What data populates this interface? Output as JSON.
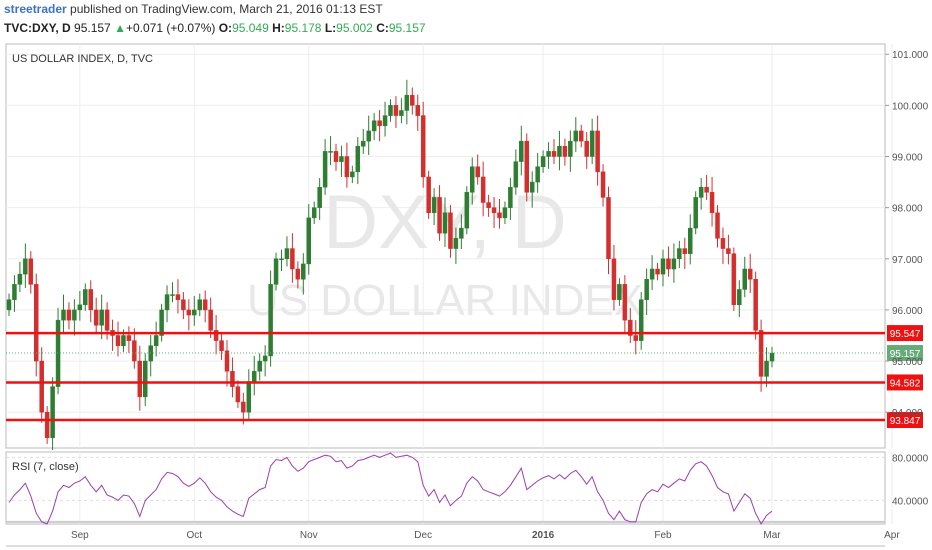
{
  "header": {
    "author": "streetrader",
    "published_text": "published on TradingView.com, March 21, 2016 01:13 EST",
    "symbol": "TVC:DXY, D",
    "last": "95.157",
    "change": "+0.071 (+0.07%)",
    "o_label": "O:",
    "o_value": "95.049",
    "h_label": "H:",
    "h_value": "95.178",
    "l_label": "L:",
    "l_value": "95.002",
    "c_label": "C:",
    "c_value": "95.157"
  },
  "chart": {
    "title": "US DOLLAR INDEX, D, TVC",
    "watermark_ticker": "DXY, D",
    "watermark_name": "US DOLLAR INDEX",
    "rsi_label": "RSI (7, close)"
  },
  "colors": {
    "up": "#2e7d32",
    "down": "#d32f2f",
    "support_line": "#ee1111",
    "rsi_line": "#9b3fae",
    "last_price_badge": "#66aa77"
  },
  "chart_data": [
    {
      "type": "candlestick",
      "title": "US DOLLAR INDEX, D, TVC",
      "x_tick_labels": [
        "Sep",
        "Oct",
        "Nov",
        "Dec",
        "2016",
        "Feb",
        "Mar",
        "Apr"
      ],
      "y_tick_labels": [
        "94.000",
        "95.000",
        "96.000",
        "97.000",
        "98.000",
        "99.000",
        "100.000",
        "101.000"
      ],
      "ylim": [
        93.3,
        101.2
      ],
      "horizontal_levels": [
        95.547,
        94.582,
        93.847
      ],
      "last_price": 95.157,
      "grid": true,
      "closes": [
        96.2,
        96.5,
        96.7,
        97.0,
        96.5,
        95.0,
        94.0,
        93.5,
        94.5,
        95.8,
        96.0,
        95.8,
        96.0,
        96.1,
        96.4,
        96.0,
        95.7,
        96.0,
        95.6,
        95.5,
        95.3,
        95.5,
        95.4,
        95.0,
        94.3,
        95.0,
        95.3,
        95.5,
        96.0,
        96.3,
        96.3,
        96.2,
        96.0,
        95.9,
        96.0,
        96.2,
        96.0,
        95.6,
        95.4,
        95.2,
        94.8,
        94.5,
        94.2,
        94.0,
        94.6,
        94.8,
        95.0,
        95.1,
        96.5,
        97.0,
        97.0,
        97.2,
        96.8,
        96.6,
        96.9,
        97.8,
        98.0,
        98.4,
        99.1,
        99.1,
        98.9,
        99.0,
        98.6,
        98.7,
        99.2,
        99.3,
        99.5,
        99.7,
        99.6,
        99.8,
        100.0,
        99.8,
        99.9,
        100.2,
        100.0,
        99.8,
        98.6,
        97.9,
        98.2,
        97.5,
        97.9,
        97.2,
        97.4,
        97.6,
        98.3,
        98.8,
        98.6,
        98.1,
        98.0,
        97.9,
        97.8,
        98.0,
        98.4,
        98.9,
        99.3,
        98.3,
        98.5,
        98.8,
        99.0,
        99.1,
        99.0,
        99.2,
        99.0,
        99.3,
        99.5,
        99.3,
        99.0,
        99.5,
        98.7,
        98.2,
        97.0,
        96.2,
        96.5,
        95.8,
        95.5,
        95.4,
        96.2,
        96.6,
        96.8,
        96.7,
        97.0,
        96.8,
        97.0,
        97.2,
        97.1,
        97.6,
        98.2,
        98.4,
        98.3,
        97.9,
        97.4,
        97.2,
        97.1,
        96.1,
        96.4,
        96.8,
        96.6,
        95.6,
        94.7,
        95.0,
        95.157
      ],
      "x_values_are_trading_day_indices": true
    },
    {
      "type": "line",
      "title": "RSI (7, close)",
      "y_tick_labels": [
        "40.0000",
        "80.0000"
      ],
      "ylim": [
        18,
        85
      ],
      "values": [
        38,
        45,
        50,
        56,
        44,
        28,
        20,
        18,
        30,
        48,
        54,
        52,
        56,
        58,
        62,
        54,
        48,
        54,
        45,
        43,
        40,
        45,
        44,
        37,
        25,
        40,
        45,
        50,
        60,
        66,
        65,
        62,
        56,
        53,
        56,
        61,
        56,
        48,
        43,
        40,
        34,
        30,
        27,
        25,
        42,
        46,
        50,
        52,
        72,
        78,
        77,
        80,
        72,
        67,
        70,
        76,
        78,
        80,
        82,
        81,
        76,
        77,
        70,
        72,
        77,
        78,
        80,
        82,
        80,
        82,
        84,
        80,
        81,
        82,
        80,
        76,
        54,
        44,
        50,
        38,
        45,
        35,
        40,
        44,
        56,
        62,
        58,
        50,
        48,
        46,
        44,
        48,
        54,
        62,
        70,
        50,
        54,
        58,
        61,
        63,
        60,
        64,
        60,
        65,
        68,
        62,
        55,
        62,
        48,
        40,
        28,
        22,
        30,
        22,
        20,
        20,
        38,
        46,
        50,
        48,
        55,
        52,
        56,
        60,
        58,
        68,
        74,
        76,
        72,
        63,
        52,
        48,
        46,
        30,
        38,
        46,
        42,
        28,
        18,
        26,
        30
      ]
    }
  ]
}
